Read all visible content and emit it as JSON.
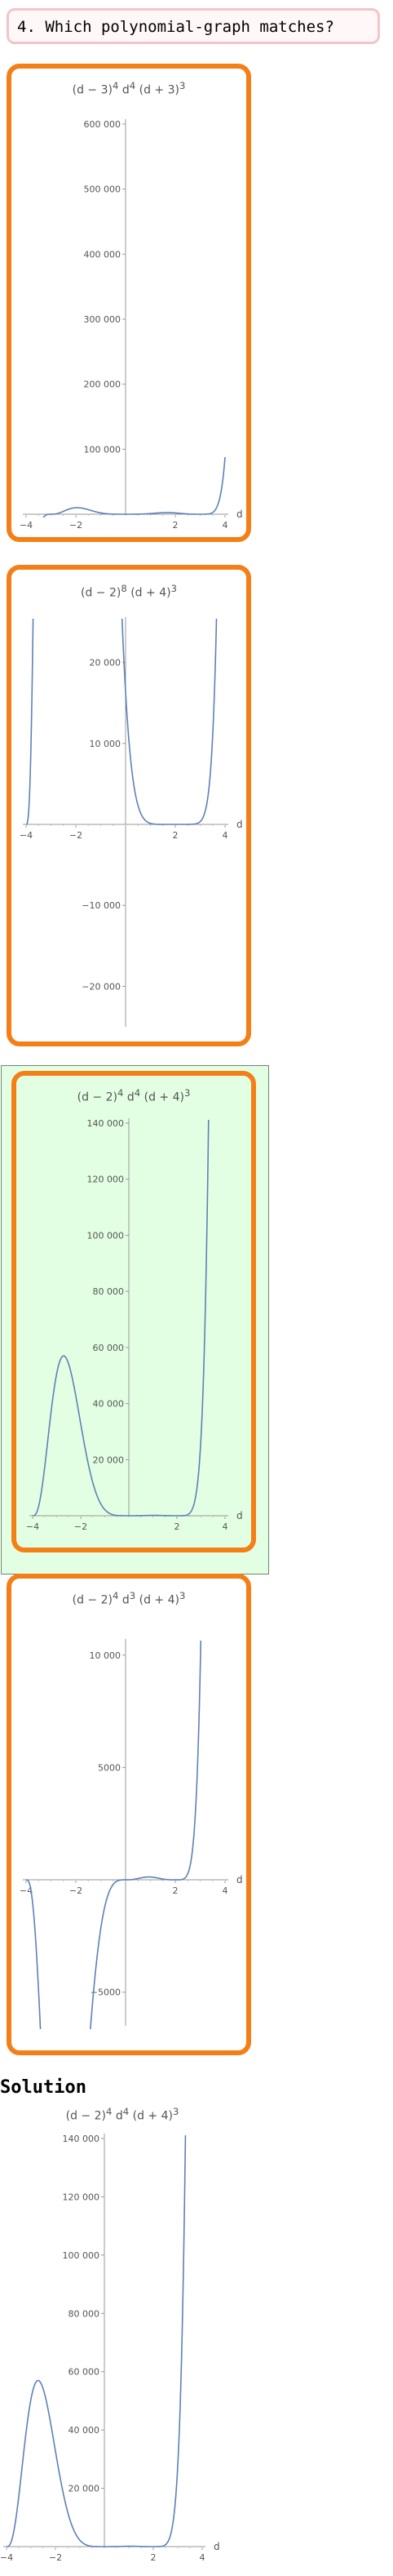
{
  "question": {
    "text": "4. Which polynomial-graph matches?"
  },
  "solution_heading": "Solution",
  "options": [
    {
      "id": "a",
      "formula_html": "(d − 3)<sup>4</sup> d<sup>4</sup> (d + 3)<sup>3</sup>",
      "selected": false,
      "chart_data": {
        "type": "line",
        "x": [
          -4,
          4
        ],
        "ylim": [
          0,
          600000
        ],
        "xticks": [
          -4,
          -2,
          2,
          4
        ],
        "xtick_labels": [
          "−4",
          "−2",
          "2",
          "4"
        ],
        "yticks": [
          100000,
          200000,
          300000,
          400000,
          500000,
          600000
        ],
        "ytick_labels": [
          "100 000",
          "200 000",
          "300 000",
          "400 000",
          "500 000",
          "600 000"
        ],
        "xlabel": "d",
        "series": [
          {
            "roots": [
              3,
              0,
              -3
            ],
            "powers": [
              4,
              4,
              3
            ]
          }
        ],
        "color": "#5e81b5"
      }
    },
    {
      "id": "b",
      "formula_html": "(d − 2)<sup>8</sup> (d + 4)<sup>3</sup>",
      "selected": false,
      "chart_data": {
        "type": "line",
        "x": [
          -4,
          4
        ],
        "ylim": [
          -25000,
          25000
        ],
        "xticks": [
          -4,
          -2,
          2,
          4
        ],
        "xtick_labels": [
          "−4",
          "−2",
          "2",
          "4"
        ],
        "yticks": [
          -20000,
          -10000,
          10000,
          20000
        ],
        "ytick_labels": [
          "−20 000",
          "−10 000",
          "10 000",
          "20 000"
        ],
        "xlabel": "d",
        "series": [
          {
            "roots": [
              2,
              -4
            ],
            "powers": [
              8,
              3
            ]
          }
        ],
        "color": "#5e81b5"
      }
    },
    {
      "id": "c",
      "formula_html": "(d − 2)<sup>4</sup> d<sup>4</sup> (d + 4)<sup>3</sup>",
      "selected": true,
      "chart_data": {
        "type": "line",
        "x": [
          -4,
          4
        ],
        "ylim": [
          0,
          140000
        ],
        "xticks": [
          -4,
          -2,
          2,
          4
        ],
        "xtick_labels": [
          "−4",
          "−2",
          "2",
          "4"
        ],
        "yticks": [
          20000,
          40000,
          60000,
          80000,
          100000,
          120000,
          140000
        ],
        "ytick_labels": [
          "20 000",
          "40 000",
          "60 000",
          "80 000",
          "100 000",
          "120 000",
          "140 000"
        ],
        "xlabel": "d",
        "series": [
          {
            "roots": [
              2,
              0,
              -4
            ],
            "powers": [
              4,
              4,
              3
            ]
          }
        ],
        "color": "#5e81b5"
      }
    },
    {
      "id": "d",
      "formula_html": "(d − 2)<sup>4</sup> d<sup>3</sup> (d + 4)<sup>3</sup>",
      "selected": false,
      "chart_data": {
        "type": "line",
        "x": [
          -4,
          4
        ],
        "ylim": [
          -6500,
          10500
        ],
        "xticks": [
          -4,
          -2,
          2,
          4
        ],
        "xtick_labels": [
          "−4",
          "−2",
          "2",
          "4"
        ],
        "yticks": [
          -5000,
          5000,
          10000
        ],
        "ytick_labels": [
          "−5000",
          "5000",
          "10 000"
        ],
        "xlabel": "d",
        "series": [
          {
            "roots": [
              2,
              0,
              -4
            ],
            "powers": [
              4,
              3,
              3
            ]
          }
        ],
        "color": "#5e81b5"
      }
    }
  ],
  "solution": {
    "formula_html": "(d − 2)<sup>4</sup> d<sup>4</sup> (d + 4)<sup>3</sup>",
    "chart_data": {
      "type": "line",
      "x": [
        -4,
        4
      ],
      "ylim": [
        0,
        140000
      ],
      "xticks": [
        -4,
        -2,
        2,
        4
      ],
      "xtick_labels": [
        "−4",
        "−2",
        "2",
        "4"
      ],
      "yticks": [
        20000,
        40000,
        60000,
        80000,
        100000,
        120000,
        140000
      ],
      "ytick_labels": [
        "20 000",
        "40 000",
        "60 000",
        "80 000",
        "100 000",
        "120 000",
        "140 000"
      ],
      "xlabel": "d",
      "series": [
        {
          "roots": [
            2,
            0,
            -4
          ],
          "powers": [
            4,
            4,
            3
          ]
        }
      ],
      "color": "#5e81b5"
    }
  }
}
